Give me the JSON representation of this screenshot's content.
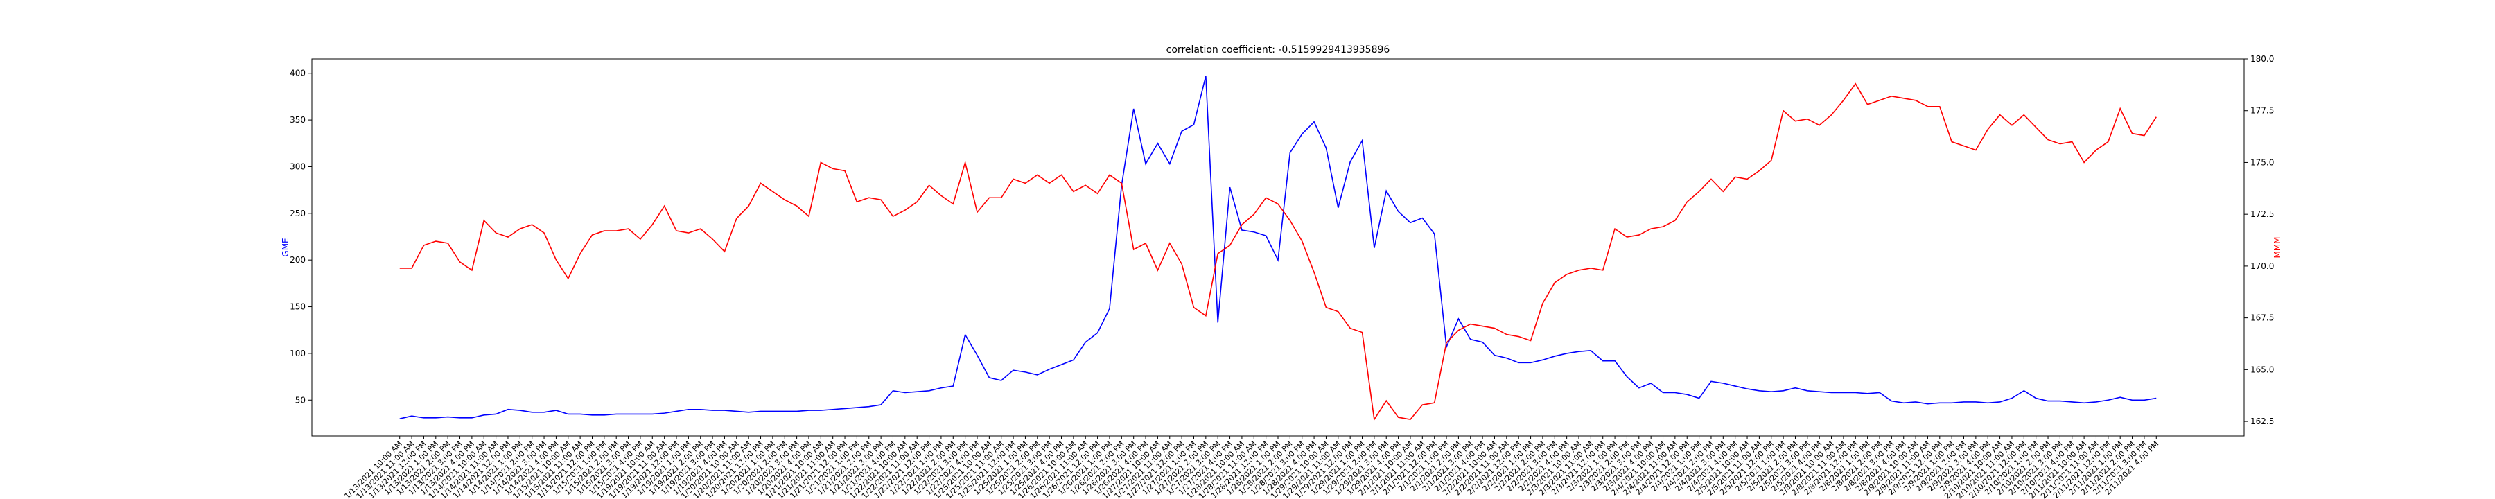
{
  "chart_data": {
    "type": "line",
    "title": "correlation coefficient: -0.5159929413935896",
    "y_label": "GME",
    "y2_label": "MMM",
    "categories": [
      "1/13/2021 10:00 AM",
      "1/13/2021 11:00 AM",
      "1/13/2021 12:00 PM",
      "1/13/2021 1:00 PM",
      "1/13/2021 2:00 PM",
      "1/13/2021 3:00 PM",
      "1/13/2021 4:00 PM",
      "1/14/2021 10:00 AM",
      "1/14/2021 11:00 AM",
      "1/14/2021 12:00 PM",
      "1/14/2021 1:00 PM",
      "1/14/2021 2:00 PM",
      "1/14/2021 3:00 PM",
      "1/14/2021 4:00 PM",
      "1/15/2021 10:00 AM",
      "1/15/2021 11:00 AM",
      "1/15/2021 12:00 PM",
      "1/15/2021 1:00 PM",
      "1/15/2021 2:00 PM",
      "1/15/2021 3:00 PM",
      "1/15/2021 4:00 PM",
      "1/19/2021 10:00 AM",
      "1/19/2021 11:00 AM",
      "1/19/2021 12:00 PM",
      "1/19/2021 1:00 PM",
      "1/19/2021 2:00 PM",
      "1/19/2021 3:00 PM",
      "1/19/2021 4:00 PM",
      "1/20/2021 10:00 AM",
      "1/20/2021 11:00 AM",
      "1/20/2021 12:00 PM",
      "1/20/2021 1:00 PM",
      "1/20/2021 2:00 PM",
      "1/20/2021 3:00 PM",
      "1/20/2021 4:00 PM",
      "1/21/2021 10:00 AM",
      "1/21/2021 11:00 AM",
      "1/21/2021 12:00 PM",
      "1/21/2021 1:00 PM",
      "1/21/2021 2:00 PM",
      "1/21/2021 3:00 PM",
      "1/21/2021 4:00 PM",
      "1/22/2021 10:00 AM",
      "1/22/2021 11:00 AM",
      "1/22/2021 12:00 PM",
      "1/22/2021 1:00 PM",
      "1/22/2021 2:00 PM",
      "1/22/2021 3:00 PM",
      "1/22/2021 4:00 PM",
      "1/25/2021 10:00 AM",
      "1/25/2021 11:00 AM",
      "1/25/2021 12:00 PM",
      "1/25/2021 1:00 PM",
      "1/25/2021 2:00 PM",
      "1/25/2021 3:00 PM",
      "1/25/2021 4:00 PM",
      "1/26/2021 10:00 AM",
      "1/26/2021 11:00 AM",
      "1/26/2021 12:00 PM",
      "1/26/2021 1:00 PM",
      "1/26/2021 2:00 PM",
      "1/26/2021 3:00 PM",
      "1/26/2021 4:00 PM",
      "1/27/2021 10:00 AM",
      "1/27/2021 11:00 AM",
      "1/27/2021 12:00 PM",
      "1/27/2021 1:00 PM",
      "1/27/2021 2:00 PM",
      "1/27/2021 3:00 PM",
      "1/27/2021 4:00 PM",
      "1/28/2021 10:00 AM",
      "1/28/2021 11:00 AM",
      "1/28/2021 12:00 PM",
      "1/28/2021 1:00 PM",
      "1/28/2021 2:00 PM",
      "1/28/2021 3:00 PM",
      "1/28/2021 4:00 PM",
      "1/29/2021 10:00 AM",
      "1/29/2021 11:00 AM",
      "1/29/2021 12:00 PM",
      "1/29/2021 1:00 PM",
      "1/29/2021 2:00 PM",
      "1/29/2021 3:00 PM",
      "1/29/2021 4:00 PM",
      "2/1/2021 10:00 AM",
      "2/1/2021 11:00 AM",
      "2/1/2021 12:00 PM",
      "2/1/2021 1:00 PM",
      "2/1/2021 2:00 PM",
      "2/1/2021 3:00 PM",
      "2/1/2021 4:00 PM",
      "2/2/2021 10:00 AM",
      "2/2/2021 11:00 AM",
      "2/2/2021 12:00 PM",
      "2/2/2021 1:00 PM",
      "2/2/2021 2:00 PM",
      "2/2/2021 3:00 PM",
      "2/2/2021 4:00 PM",
      "2/3/2021 10:00 AM",
      "2/3/2021 11:00 AM",
      "2/3/2021 12:00 PM",
      "2/3/2021 1:00 PM",
      "2/3/2021 2:00 PM",
      "2/3/2021 3:00 PM",
      "2/3/2021 4:00 PM",
      "2/4/2021 10:00 AM",
      "2/4/2021 11:00 AM",
      "2/4/2021 12:00 PM",
      "2/4/2021 1:00 PM",
      "2/4/2021 2:00 PM",
      "2/4/2021 3:00 PM",
      "2/4/2021 4:00 PM",
      "2/5/2021 10:00 AM",
      "2/5/2021 11:00 AM",
      "2/5/2021 12:00 PM",
      "2/5/2021 1:00 PM",
      "2/5/2021 2:00 PM",
      "2/5/2021 3:00 PM",
      "2/5/2021 4:00 PM",
      "2/8/2021 10:00 AM",
      "2/8/2021 11:00 AM",
      "2/8/2021 12:00 PM",
      "2/8/2021 1:00 PM",
      "2/8/2021 2:00 PM",
      "2/8/2021 3:00 PM",
      "2/8/2021 4:00 PM",
      "2/9/2021 10:00 AM",
      "2/9/2021 11:00 AM",
      "2/9/2021 12:00 PM",
      "2/9/2021 1:00 PM",
      "2/9/2021 2:00 PM",
      "2/9/2021 3:00 PM",
      "2/9/2021 4:00 PM",
      "2/10/2021 10:00 AM",
      "2/10/2021 11:00 AM",
      "2/10/2021 12:00 PM",
      "2/10/2021 1:00 PM",
      "2/10/2021 2:00 PM",
      "2/10/2021 3:00 PM",
      "2/10/2021 4:00 PM",
      "2/11/2021 10:00 AM",
      "2/11/2021 11:00 AM",
      "2/11/2021 12:00 PM",
      "2/11/2021 1:00 PM",
      "2/11/2021 2:00 PM",
      "2/11/2021 3:00 PM",
      "2/11/2021 4:00 PM"
    ],
    "series": [
      {
        "name": "GME",
        "color": "#0000ff",
        "axis": "y",
        "values": [
          30,
          33,
          31,
          31,
          32,
          31,
          31,
          34,
          35,
          40,
          39,
          37,
          37,
          39,
          35,
          35,
          34,
          34,
          35,
          35,
          35,
          35,
          36,
          38,
          40,
          40,
          39,
          39,
          38,
          37,
          38,
          38,
          38,
          38,
          39,
          39,
          40,
          41,
          42,
          43,
          45,
          60,
          58,
          59,
          60,
          63,
          65,
          120,
          98,
          74,
          71,
          82,
          80,
          77,
          83,
          88,
          93,
          112,
          122,
          148,
          280,
          362,
          303,
          325,
          303,
          338,
          345,
          397,
          133,
          278,
          232,
          230,
          226,
          200,
          315,
          335,
          348,
          320,
          256,
          305,
          328,
          213,
          274,
          252,
          240,
          245,
          228,
          107,
          137,
          115,
          112,
          98,
          95,
          90,
          90,
          93,
          97,
          100,
          102,
          103,
          92,
          92,
          75,
          63,
          68,
          58,
          58,
          56,
          52,
          70,
          68,
          65,
          62,
          60,
          59,
          60,
          63,
          60,
          59,
          58,
          58,
          58,
          57,
          58,
          49,
          47,
          48,
          46,
          47,
          47,
          48,
          48,
          47,
          48,
          52,
          60,
          52,
          49,
          49,
          48,
          47,
          48,
          50,
          53,
          50,
          50,
          52
        ]
      },
      {
        "name": "MMM",
        "color": "#ff0000",
        "axis": "y2",
        "values": [
          169.9,
          169.9,
          171.0,
          171.2,
          171.1,
          170.2,
          169.8,
          172.2,
          171.6,
          171.4,
          171.8,
          172.0,
          171.6,
          170.3,
          169.4,
          170.6,
          171.5,
          171.7,
          171.7,
          171.8,
          171.3,
          172.0,
          172.9,
          171.7,
          171.6,
          171.8,
          171.3,
          170.7,
          172.3,
          172.9,
          174.0,
          173.6,
          173.2,
          172.9,
          172.4,
          175.0,
          174.7,
          174.6,
          173.1,
          173.3,
          173.2,
          172.4,
          172.7,
          173.1,
          173.9,
          173.4,
          173.0,
          175.0,
          172.6,
          173.3,
          173.3,
          174.2,
          174.0,
          174.4,
          174.0,
          174.4,
          173.6,
          173.9,
          173.5,
          174.4,
          174.0,
          170.8,
          171.1,
          169.8,
          171.1,
          170.1,
          168.0,
          167.6,
          170.6,
          171.0,
          172.0,
          172.5,
          173.3,
          173.0,
          172.2,
          171.2,
          169.7,
          168.0,
          167.8,
          167.0,
          166.8,
          162.6,
          163.5,
          162.7,
          162.6,
          163.3,
          163.4,
          166.3,
          166.9,
          167.2,
          167.1,
          167.0,
          166.7,
          166.6,
          166.4,
          168.2,
          169.2,
          169.6,
          169.8,
          169.9,
          169.8,
          171.8,
          171.4,
          171.5,
          171.8,
          171.9,
          172.2,
          173.1,
          173.6,
          174.2,
          173.6,
          174.3,
          174.2,
          174.6,
          175.1,
          177.5,
          177.0,
          177.1,
          176.8,
          177.3,
          178.0,
          178.8,
          177.8,
          178.0,
          178.2,
          178.1,
          178.0,
          177.7,
          177.7,
          176.0,
          175.8,
          175.6,
          176.6,
          177.3,
          176.8,
          177.3,
          176.7,
          176.1,
          175.9,
          176.0,
          175.0,
          175.6,
          176.0,
          177.6,
          176.4,
          176.3,
          177.2
        ]
      }
    ],
    "ylim": [
      11.6,
      415.4
    ],
    "yticks": [
      50,
      100,
      150,
      200,
      250,
      300,
      350,
      400
    ],
    "y2lim": [
      161.8,
      180.0
    ],
    "y2ticks": [
      162.5,
      {
        "value": 165.0,
        "label": "165.0"
      },
      167.5,
      {
        "value": 170.0,
        "label": "170.0"
      },
      172.5,
      {
        "value": 175.0,
        "label": "175.0"
      },
      177.5,
      {
        "value": 180.0,
        "label": "180.0"
      }
    ],
    "grid": false
  }
}
